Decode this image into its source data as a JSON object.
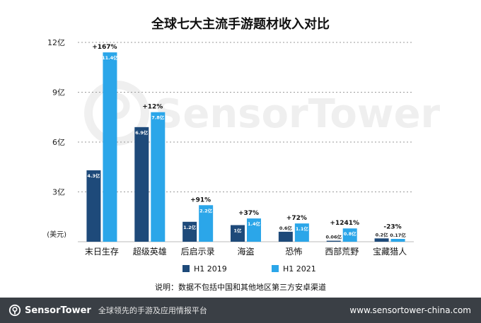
{
  "colors": {
    "h1_2019": "#1e4a7a",
    "h1_2021": "#2ba6e9",
    "grid": "#9a9a9a",
    "footer_bg": "#3a3f45"
  },
  "watermark": {
    "text": "SensorTower"
  },
  "footer": {
    "brand": "SensorTower",
    "tagline": "全球领先的手游及应用情报平台",
    "site": "www.sensortower-china.com"
  },
  "chart_data": {
    "type": "bar",
    "title": "全球七大主流手游题材收入对比",
    "ylabel": "(美元)",
    "ylim": [
      0,
      12
    ],
    "yticks": [
      {
        "value": 3,
        "label": "3亿"
      },
      {
        "value": 6,
        "label": "6亿"
      },
      {
        "value": 9,
        "label": "9亿"
      },
      {
        "value": 12,
        "label": "12亿"
      }
    ],
    "grid": true,
    "legend_position": "bottom",
    "categories": [
      "末日生存",
      "超级英雄",
      "后启示录",
      "海盗",
      "恐怖",
      "西部荒野",
      "宝藏猎人"
    ],
    "series": [
      {
        "name": "H1 2019",
        "values": [
          4.3,
          6.9,
          1.2,
          1.0,
          0.6,
          0.06,
          0.2
        ],
        "labels": [
          "4.3亿",
          "6.9亿",
          "1.2亿",
          "1亿",
          "0.6亿",
          "0.06亿",
          "0.2亿"
        ]
      },
      {
        "name": "H1 2021",
        "values": [
          11.4,
          7.8,
          2.2,
          1.4,
          1.1,
          0.8,
          0.17
        ],
        "labels": [
          "11.4亿",
          "7.8亿",
          "2.2亿",
          "1.4亿",
          "1.1亿",
          "0.8亿",
          "0.17亿"
        ]
      }
    ],
    "growth": [
      "+167%",
      "+12%",
      "+91%",
      "+37%",
      "+72%",
      "+1241%",
      "-23%"
    ],
    "note": "说明：数据不包括中国和其他地区第三方安卓渠道"
  }
}
